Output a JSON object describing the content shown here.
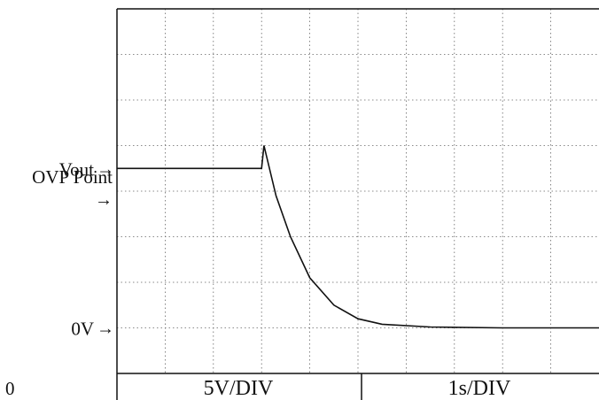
{
  "chart_data": {
    "type": "line",
    "title": "",
    "xlabel": "",
    "ylabel": "",
    "grid": true,
    "grid_divisions": {
      "x": 10,
      "y": 8
    },
    "x_unit_per_div": "1 s",
    "y_unit_per_div": "5 V",
    "xlim": [
      0,
      10
    ],
    "ylim": [
      -1,
      7
    ],
    "series": [
      {
        "values": [
          {
            "x": 0.0,
            "y": 3.5
          },
          {
            "x": 3.0,
            "y": 3.5
          },
          {
            "x": 3.05,
            "y": 4.0
          },
          {
            "x": 3.3,
            "y": 2.9
          },
          {
            "x": 3.6,
            "y": 2.0
          },
          {
            "x": 4.0,
            "y": 1.1
          },
          {
            "x": 4.5,
            "y": 0.5
          },
          {
            "x": 5.0,
            "y": 0.2
          },
          {
            "x": 5.5,
            "y": 0.08
          },
          {
            "x": 6.5,
            "y": 0.02
          },
          {
            "x": 8.0,
            "y": 0.0
          },
          {
            "x": 10.0,
            "y": 0.0
          }
        ]
      }
    ],
    "annotations": [
      {
        "text": "OVP Point",
        "arrow": "→",
        "y": 4.0
      },
      {
        "text": "Vout",
        "arrow": "→",
        "y": 3.5
      },
      {
        "text": "0V",
        "arrow": "→",
        "y": 0.0
      }
    ]
  },
  "footer": {
    "corner_label": "0",
    "volts_per_div": "5V/DIV",
    "time_per_div": "1s/DIV"
  }
}
